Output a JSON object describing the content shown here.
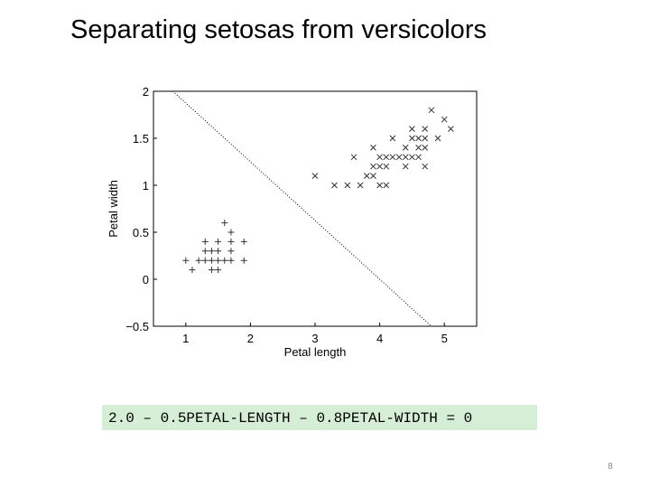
{
  "chart_data": {
    "type": "scatter",
    "title": "Separating setosas from versicolors",
    "x_label": "Petal length",
    "y_label": "Petal width",
    "xlim": [
      0.5,
      5.5
    ],
    "ylim": [
      -0.5,
      2
    ],
    "xticks": [
      1,
      2,
      3,
      4,
      5
    ],
    "yticks": [
      {
        "value": -0.5,
        "label": "−0.5"
      },
      0,
      0.5,
      1,
      1.5,
      2
    ],
    "series": [
      {
        "marker": "plus",
        "color": "#333333",
        "x": [
          1.6,
          1.7,
          1.3,
          1.5,
          1.7,
          1.9,
          1.3,
          1.4,
          1.5,
          1.7,
          1.0,
          1.2,
          1.3,
          1.4,
          1.5,
          1.6,
          1.7,
          1.9,
          1.1,
          1.4,
          1.5
        ],
        "y": [
          0.6,
          0.5,
          0.4,
          0.4,
          0.4,
          0.4,
          0.3,
          0.3,
          0.3,
          0.3,
          0.2,
          0.2,
          0.2,
          0.2,
          0.2,
          0.2,
          0.2,
          0.2,
          0.1,
          0.1,
          0.1
        ]
      },
      {
        "marker": "cross",
        "color": "#333333",
        "x": [
          3.0,
          3.3,
          3.5,
          3.7,
          4.0,
          4.1,
          3.8,
          3.9,
          3.9,
          4.0,
          4.1,
          4.4,
          4.7,
          3.6,
          4.0,
          4.1,
          4.2,
          4.3,
          4.4,
          4.5,
          4.6,
          3.9,
          4.4,
          4.6,
          4.7,
          4.2,
          4.5,
          4.6,
          4.7,
          4.9,
          4.5,
          4.7,
          5.1,
          5.0,
          4.8
        ],
        "y": [
          1.1,
          1.0,
          1.0,
          1.0,
          1.0,
          1.0,
          1.1,
          1.1,
          1.2,
          1.2,
          1.2,
          1.2,
          1.2,
          1.3,
          1.3,
          1.3,
          1.3,
          1.3,
          1.3,
          1.3,
          1.3,
          1.4,
          1.4,
          1.4,
          1.4,
          1.5,
          1.5,
          1.5,
          1.5,
          1.5,
          1.6,
          1.6,
          1.6,
          1.7,
          1.8
        ]
      }
    ],
    "boundary": {
      "intercept": 2.0,
      "x_coef": -0.5,
      "y_coef": -0.8,
      "equation": "2.0 – 0.5PETAL-LENGTH – 0.8PETAL-WIDTH = 0"
    },
    "slide_number": "8"
  }
}
